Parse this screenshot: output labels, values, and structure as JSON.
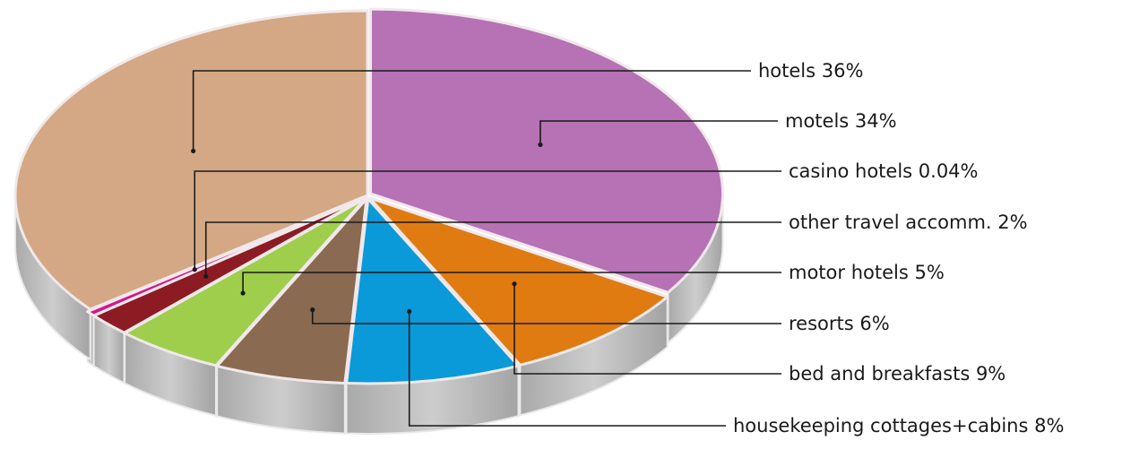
{
  "chart_data": {
    "type": "pie",
    "title": "",
    "style": "3d-exploded",
    "slices": [
      {
        "label": "motels 34%",
        "value": 34,
        "color": "#b672b4"
      },
      {
        "label": "bed and breakfasts 9%",
        "value": 9,
        "color": "#e07b12"
      },
      {
        "label": "housekeeping cottages+cabins 8%",
        "value": 8,
        "color": "#0a9ad9"
      },
      {
        "label": "resorts 6%",
        "value": 6,
        "color": "#8a6a51"
      },
      {
        "label": "motor hotels 5%",
        "value": 5,
        "color": "#9fce4c"
      },
      {
        "label": "other travel accomm. 2%",
        "value": 2,
        "color": "#8c1b24"
      },
      {
        "label": "casino hotels 0.04%",
        "value": 0.04,
        "color": "#d3168b"
      },
      {
        "label": "hotels 36%",
        "value": 36,
        "color": "#d4a884"
      }
    ],
    "legend": "right-side callout labels"
  }
}
